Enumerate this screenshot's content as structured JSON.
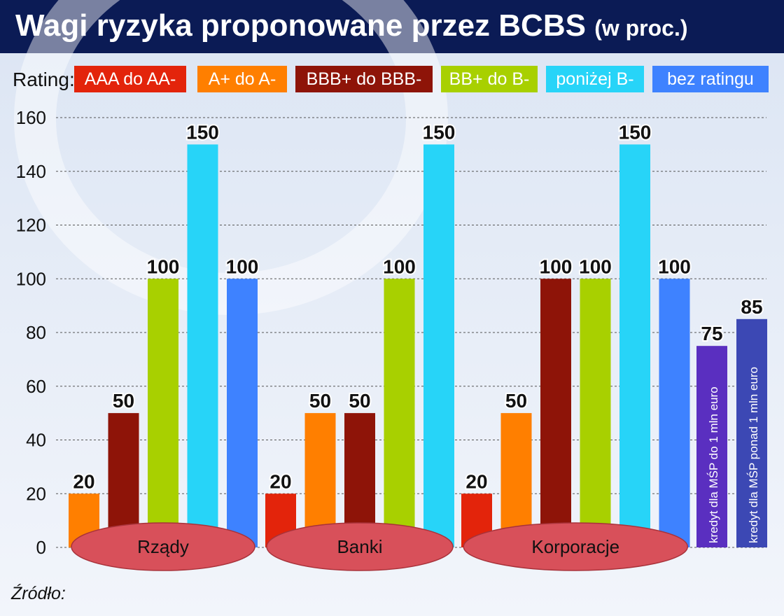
{
  "title": "Wagi ryzyka proponowane przez BCBS",
  "title_suffix": "(w proc.)",
  "legend_label": "Rating:",
  "source_label": "Źródło:",
  "colors": {
    "background_top": "#dde6f4",
    "background_bottom": "#f2f5fb",
    "grid": "#555555",
    "ellipse": "#d8505a",
    "title_bar": "#0b1b55"
  },
  "chart_data": {
    "type": "bar",
    "title": "Wagi ryzyka proponowane przez BCBS (w proc.)",
    "ylabel": "",
    "xlabel": "",
    "ylim": [
      0,
      160
    ],
    "yticks": [
      0,
      20,
      40,
      60,
      80,
      100,
      120,
      140,
      160
    ],
    "grid": true,
    "legend_position": "top",
    "legend": [
      {
        "name": "AAA do AA-",
        "color": "#e3240b"
      },
      {
        "name": "A+ do A-",
        "color": "#ff7f00"
      },
      {
        "name": "BBB+ do BBB-",
        "color": "#8e1408"
      },
      {
        "name": "BB+ do B-",
        "color": "#a8d000"
      },
      {
        "name": "poniżej B-",
        "color": "#27d4f8"
      },
      {
        "name": "bez ratingu",
        "color": "#3e82ff"
      }
    ],
    "groups": [
      {
        "name": "Rządy",
        "bars": [
          {
            "series": "A+ do A-",
            "value": 20
          },
          {
            "series": "BBB+ do BBB-",
            "value": 50
          },
          {
            "series": "BB+ do B-",
            "value": 100
          },
          {
            "series": "poniżej B-",
            "value": 150
          },
          {
            "series": "bez ratingu",
            "value": 100
          }
        ]
      },
      {
        "name": "Banki",
        "bars": [
          {
            "series": "AAA do AA-",
            "value": 20
          },
          {
            "series": "A+ do A-",
            "value": 50
          },
          {
            "series": "BBB+ do BBB-",
            "value": 50
          },
          {
            "series": "BB+ do B-",
            "value": 100
          },
          {
            "series": "poniżej B-",
            "value": 150
          }
        ]
      },
      {
        "name": "Korporacje",
        "bars": [
          {
            "series": "AAA do AA-",
            "value": 20
          },
          {
            "series": "A+ do A-",
            "value": 50
          },
          {
            "series": "BBB+ do BBB-",
            "value": 100
          },
          {
            "series": "BB+ do B-",
            "value": 100
          },
          {
            "series": "poniżej B-",
            "value": 150
          },
          {
            "series": "bez ratingu",
            "value": 100
          }
        ]
      }
    ],
    "extra_bars": [
      {
        "label": "kredyt dla MŚP do 1 mln euro",
        "value": 75,
        "color": "#5a2fc0"
      },
      {
        "label": "kredyt dla MŚP ponad 1 mln euro",
        "value": 85,
        "color": "#3c48b4"
      }
    ]
  }
}
